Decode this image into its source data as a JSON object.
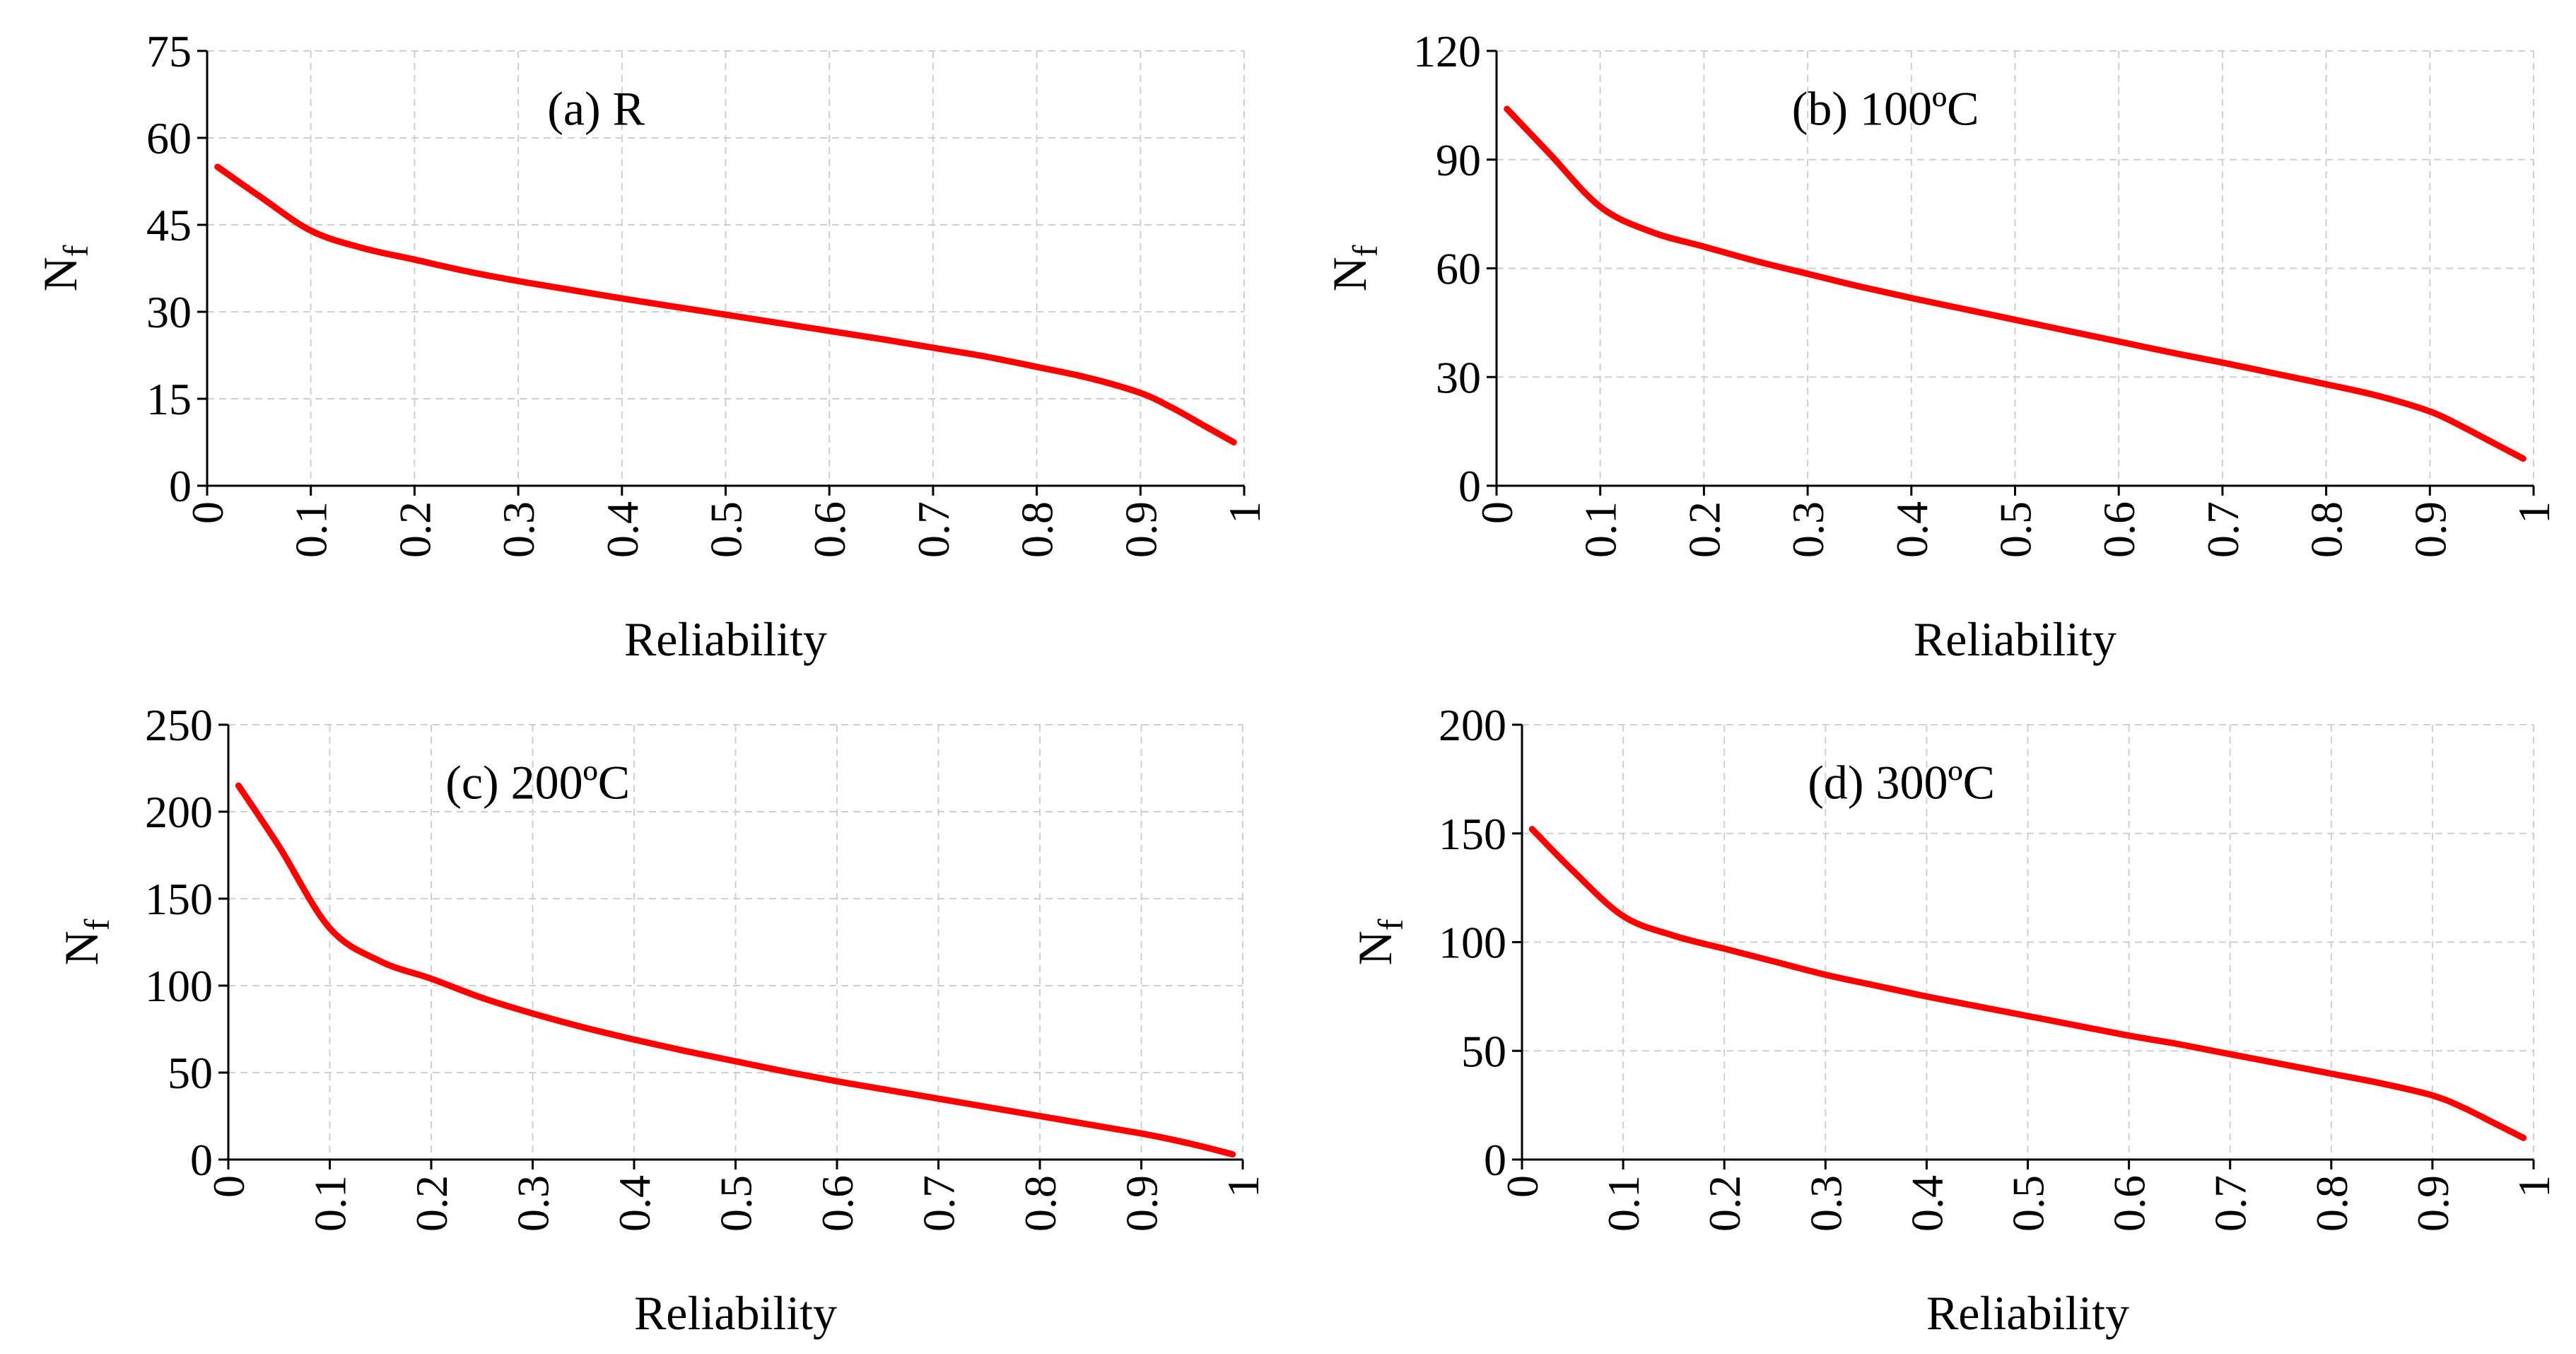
{
  "figure": {
    "background": "#ffffff"
  },
  "style": {
    "line_color": "#ff0000",
    "grid_color": "#cfcfcf",
    "axis_color": "#000000"
  },
  "chart_data": [
    {
      "type": "line",
      "panel_label": "(a) R",
      "xlabel": "Reliability",
      "ylabel": "N",
      "ylabel_sub": "f",
      "xlim": [
        0,
        1
      ],
      "ylim": [
        0,
        75
      ],
      "xticks": [
        "0",
        "0.1",
        "0.2",
        "0.3",
        "0.4",
        "0.5",
        "0.6",
        "0.7",
        "0.8",
        "0.9",
        "1"
      ],
      "yticks": [
        "0",
        "15",
        "30",
        "45",
        "60",
        "75"
      ],
      "grid": true,
      "x": [
        0.01,
        0.05,
        0.1,
        0.15,
        0.2,
        0.25,
        0.3,
        0.35,
        0.4,
        0.45,
        0.5,
        0.55,
        0.6,
        0.65,
        0.7,
        0.75,
        0.8,
        0.85,
        0.9,
        0.93,
        0.96,
        0.99
      ],
      "y": [
        55,
        50,
        44,
        41,
        39,
        37,
        35.3,
        33.8,
        32.3,
        30.9,
        29.5,
        28.1,
        26.7,
        25.3,
        23.8,
        22.3,
        20.5,
        18.6,
        16,
        13.5,
        10.5,
        7.5
      ]
    },
    {
      "type": "line",
      "panel_label": "(b) 100ºC",
      "xlabel": "Reliability",
      "ylabel": "N",
      "ylabel_sub": "f",
      "xlim": [
        0,
        1
      ],
      "ylim": [
        0,
        120
      ],
      "xticks": [
        "0",
        "0.1",
        "0.2",
        "0.3",
        "0.4",
        "0.5",
        "0.6",
        "0.7",
        "0.8",
        "0.9",
        "1"
      ],
      "yticks": [
        "0",
        "30",
        "60",
        "90",
        "120"
      ],
      "grid": true,
      "x": [
        0.01,
        0.05,
        0.1,
        0.15,
        0.2,
        0.25,
        0.3,
        0.35,
        0.4,
        0.45,
        0.5,
        0.55,
        0.6,
        0.65,
        0.7,
        0.75,
        0.8,
        0.85,
        0.9,
        0.93,
        0.96,
        0.99
      ],
      "y": [
        104,
        92,
        77,
        70,
        66,
        62,
        58.5,
        55,
        51.8,
        48.8,
        45.8,
        42.8,
        39.8,
        36.8,
        34,
        31,
        28,
        24.8,
        20.5,
        16.5,
        12,
        7.5
      ]
    },
    {
      "type": "line",
      "panel_label": "(c) 200ºC",
      "xlabel": "Reliability",
      "ylabel": "N",
      "ylabel_sub": "f",
      "xlim": [
        0,
        1
      ],
      "ylim": [
        0,
        250
      ],
      "xticks": [
        "0",
        "0.1",
        "0.2",
        "0.3",
        "0.4",
        "0.5",
        "0.6",
        "0.7",
        "0.8",
        "0.9",
        "1"
      ],
      "yticks": [
        "0",
        "50",
        "100",
        "150",
        "200",
        "250"
      ],
      "grid": true,
      "x": [
        0.01,
        0.05,
        0.1,
        0.15,
        0.2,
        0.25,
        0.3,
        0.35,
        0.4,
        0.45,
        0.5,
        0.55,
        0.6,
        0.65,
        0.7,
        0.75,
        0.8,
        0.85,
        0.9,
        0.93,
        0.96,
        0.99
      ],
      "y": [
        215,
        180,
        133,
        114,
        104,
        93,
        84,
        76,
        69,
        62.5,
        56.5,
        50.5,
        45,
        40,
        35,
        30,
        25,
        20,
        15,
        11.5,
        7.5,
        3
      ]
    },
    {
      "type": "line",
      "panel_label": "(d) 300ºC",
      "xlabel": "Reliability",
      "ylabel": "N",
      "ylabel_sub": "f",
      "xlim": [
        0,
        1
      ],
      "ylim": [
        0,
        200
      ],
      "xticks": [
        "0",
        "0.1",
        "0.2",
        "0.3",
        "0.4",
        "0.5",
        "0.6",
        "0.7",
        "0.8",
        "0.9",
        "1"
      ],
      "yticks": [
        "0",
        "50",
        "100",
        "150",
        "200"
      ],
      "grid": true,
      "x": [
        0.01,
        0.05,
        0.1,
        0.15,
        0.2,
        0.25,
        0.3,
        0.35,
        0.4,
        0.45,
        0.5,
        0.55,
        0.6,
        0.65,
        0.7,
        0.75,
        0.8,
        0.85,
        0.9,
        0.93,
        0.96,
        0.99
      ],
      "y": [
        152,
        133,
        112,
        103,
        97,
        91,
        85,
        80,
        75,
        70.5,
        66,
        61.5,
        57,
        53,
        48.5,
        44,
        39.5,
        35,
        29.5,
        24,
        17,
        10
      ]
    }
  ]
}
